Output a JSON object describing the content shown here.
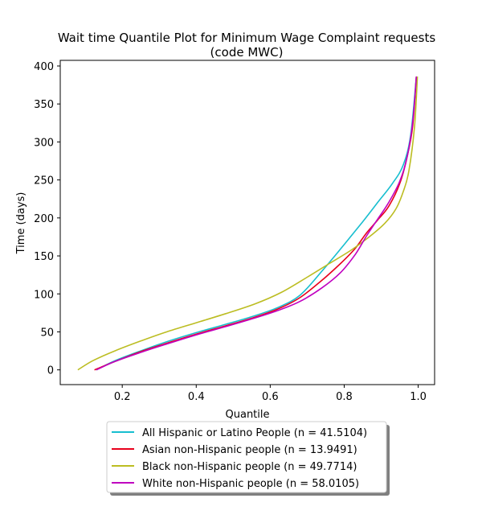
{
  "chart_data": {
    "type": "line",
    "title": [
      "Wait time Quantile Plot for Minimum Wage Complaint  requests",
      "(code MWC)"
    ],
    "xlabel": "Quantile",
    "ylabel": "Time (days)",
    "xlim": [
      0.0324,
      1.0444
    ],
    "ylim": [
      -19.4,
      407.4
    ],
    "xticks": [
      0.2,
      0.4,
      0.6,
      0.8,
      1.0
    ],
    "xtick_labels": [
      "0.2",
      "0.4",
      "0.6",
      "0.8",
      "1.0"
    ],
    "yticks": [
      0,
      50,
      100,
      150,
      200,
      250,
      300,
      350,
      400
    ],
    "ytick_labels": [
      "0",
      "50",
      "100",
      "150",
      "200",
      "250",
      "300",
      "350",
      "400"
    ],
    "grid": false,
    "legend_position": "bottom-center",
    "series": [
      {
        "name": "All Hispanic or Latino People (n = 41.5104)",
        "color": "#17becf",
        "x": [
          0.13,
          0.18,
          0.25,
          0.32,
          0.4,
          0.48,
          0.55,
          0.62,
          0.68,
          0.74,
          0.8,
          0.85,
          0.89,
          0.93,
          0.96,
          0.98,
          0.995
        ],
        "y": [
          0,
          12,
          25,
          37,
          49,
          60,
          70,
          82,
          98,
          130,
          165,
          195,
          220,
          245,
          270,
          310,
          386
        ]
      },
      {
        "name": "Asian non-Hispanic people (n = 13.9491)",
        "color": "#e8001c",
        "x": [
          0.125,
          0.18,
          0.25,
          0.32,
          0.4,
          0.48,
          0.55,
          0.62,
          0.68,
          0.74,
          0.79,
          0.83,
          0.86,
          0.89,
          0.92,
          0.95,
          0.97,
          0.985,
          0.995
        ],
        "y": [
          0,
          11,
          24,
          35,
          47,
          58,
          68,
          80,
          95,
          118,
          140,
          160,
          180,
          197,
          215,
          245,
          280,
          320,
          386
        ]
      },
      {
        "name": "Black non-Hispanic people (n = 49.7714)",
        "color": "#bcbd22",
        "x": [
          0.08,
          0.12,
          0.18,
          0.25,
          0.32,
          0.4,
          0.48,
          0.56,
          0.63,
          0.7,
          0.76,
          0.82,
          0.87,
          0.91,
          0.94,
          0.96,
          0.975,
          0.99,
          0.998
        ],
        "y": [
          0,
          12,
          25,
          38,
          50,
          62,
          74,
          87,
          102,
          122,
          140,
          158,
          176,
          193,
          212,
          235,
          262,
          320,
          386
        ]
      },
      {
        "name": "White non-Hispanic people (n = 58.0105)",
        "color": "#c000c0",
        "x": [
          0.13,
          0.18,
          0.25,
          0.32,
          0.4,
          0.48,
          0.55,
          0.62,
          0.68,
          0.74,
          0.79,
          0.83,
          0.86,
          0.89,
          0.92,
          0.95,
          0.97,
          0.985,
          0.995
        ],
        "y": [
          0,
          11,
          23,
          34,
          46,
          57,
          67,
          78,
          90,
          108,
          128,
          152,
          176,
          198,
          220,
          248,
          280,
          325,
          386
        ]
      }
    ]
  }
}
